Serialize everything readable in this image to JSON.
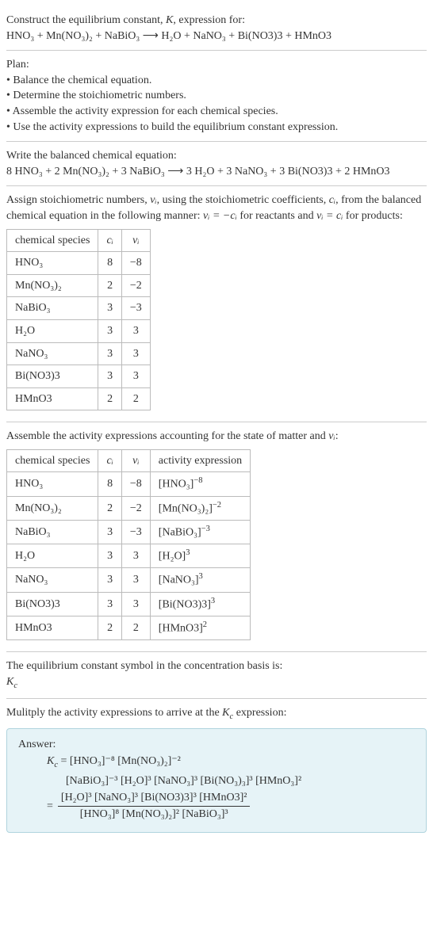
{
  "intro": {
    "line1_a": "Construct the equilibrium constant, ",
    "line1_k": "K",
    "line1_b": ", expression for:",
    "eq_lhs": "HNO",
    "eq": "HNO₃ + Mn(NO₃)₂ + NaBiO₃  ⟶  H₂O + NaNO₃ + Bi(NO3)3 + HMnO3"
  },
  "plan": {
    "title": "Plan:",
    "b1": "• Balance the chemical equation.",
    "b2": "• Determine the stoichiometric numbers.",
    "b3": "• Assemble the activity expression for each chemical species.",
    "b4": "• Use the activity expressions to build the equilibrium constant expression."
  },
  "balanced": {
    "title": "Write the balanced chemical equation:",
    "eq": "8 HNO₃ + 2 Mn(NO₃)₂ + 3 NaBiO₃  ⟶  3 H₂O + 3 NaNO₃ + 3 Bi(NO3)3 + 2 HMnO3"
  },
  "stoich": {
    "intro_a": "Assign stoichiometric numbers, ",
    "intro_vi": "νᵢ",
    "intro_b": ", using the stoichiometric coefficients, ",
    "intro_ci": "cᵢ",
    "intro_c": ", from the balanced chemical equation in the following manner: ",
    "intro_eq1": "νᵢ = −cᵢ",
    "intro_d": " for reactants and ",
    "intro_eq2": "νᵢ = cᵢ",
    "intro_e": " for products:",
    "headers": [
      "chemical species",
      "cᵢ",
      "νᵢ"
    ],
    "rows": [
      [
        "HNO₃",
        "8",
        "−8"
      ],
      [
        "Mn(NO₃)₂",
        "2",
        "−2"
      ],
      [
        "NaBiO₃",
        "3",
        "−3"
      ],
      [
        "H₂O",
        "3",
        "3"
      ],
      [
        "NaNO₃",
        "3",
        "3"
      ],
      [
        "Bi(NO3)3",
        "3",
        "3"
      ],
      [
        "HMnO3",
        "2",
        "2"
      ]
    ]
  },
  "activity": {
    "title_a": "Assemble the activity expressions accounting for the state of matter and ",
    "title_vi": "νᵢ",
    "title_b": ":",
    "headers": [
      "chemical species",
      "cᵢ",
      "νᵢ",
      "activity expression"
    ],
    "rows": [
      {
        "sp": "HNO₃",
        "c": "8",
        "v": "−8",
        "ae_base": "[HNO₃]",
        "ae_exp": "−8"
      },
      {
        "sp": "Mn(NO₃)₂",
        "c": "2",
        "v": "−2",
        "ae_base": "[Mn(NO₃)₂]",
        "ae_exp": "−2"
      },
      {
        "sp": "NaBiO₃",
        "c": "3",
        "v": "−3",
        "ae_base": "[NaBiO₃]",
        "ae_exp": "−3"
      },
      {
        "sp": "H₂O",
        "c": "3",
        "v": "3",
        "ae_base": "[H₂O]",
        "ae_exp": "3"
      },
      {
        "sp": "NaNO₃",
        "c": "3",
        "v": "3",
        "ae_base": "[NaNO₃]",
        "ae_exp": "3"
      },
      {
        "sp": "Bi(NO3)3",
        "c": "3",
        "v": "3",
        "ae_base": "[Bi(NO3)3]",
        "ae_exp": "3"
      },
      {
        "sp": "HMnO3",
        "c": "2",
        "v": "2",
        "ae_base": "[HMnO3]",
        "ae_exp": "2"
      }
    ]
  },
  "kc_symbol": {
    "title": "The equilibrium constant symbol in the concentration basis is:",
    "sym": "K",
    "sub": "c"
  },
  "multiply": {
    "title_a": "Mulitply the activity expressions to arrive at the ",
    "kc": "K",
    "kc_sub": "c",
    "title_b": " expression:"
  },
  "answer": {
    "label": "Answer:",
    "kc": "K",
    "kc_sub": "c",
    "line1": " = [HNO₃]⁻⁸ [Mn(NO₃)₂]⁻²",
    "line2": "[NaBiO₃]⁻³ [H₂O]³ [NaNO₃]³ [Bi(NO₃)₃]³ [HMnO₃]²",
    "num": "[H₂O]³ [NaNO₃]³ [Bi(NO3)3]³ [HMnO3]²",
    "den": "[HNO₃]⁸ [Mn(NO₃)₂]² [NaBiO₃]³"
  }
}
